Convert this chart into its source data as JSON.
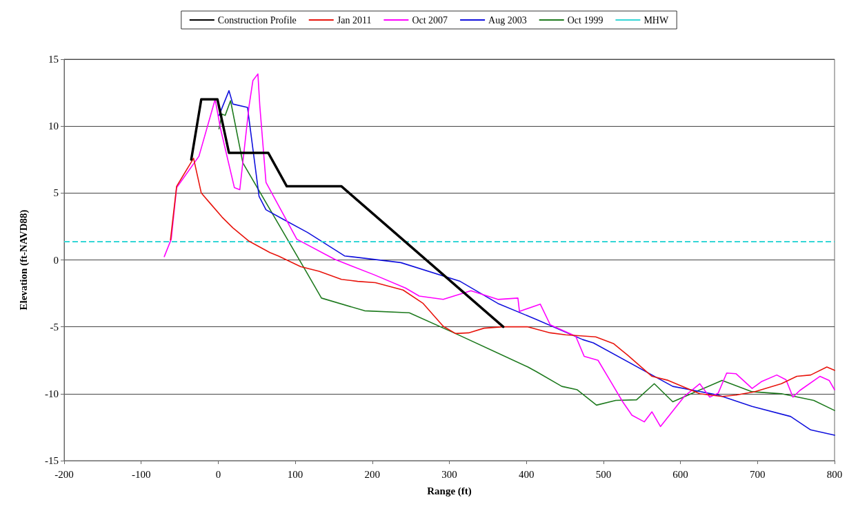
{
  "chart_data": {
    "type": "line",
    "xlabel": "Range (ft)",
    "ylabel": "Elevation (ft-NAVD88)",
    "xlim": [
      -200,
      800
    ],
    "xticks": [
      -200,
      -100,
      0,
      100,
      200,
      300,
      400,
      500,
      600,
      700,
      800
    ],
    "ylim": [
      -15,
      15
    ],
    "yticks": [
      -15,
      -10,
      -5,
      0,
      5,
      10,
      15
    ],
    "grid": "y",
    "legend": "top",
    "marker": "none",
    "line_style": "solid",
    "series": [
      {
        "name": "Construction Profile",
        "color": "#000000",
        "x": [
          -35,
          -22,
          -1,
          14,
          65,
          89,
          160,
          370
        ],
        "values": [
          7.5,
          12,
          12,
          8,
          8,
          5.5,
          5.5,
          -5
        ]
      },
      {
        "name": "Jan 2011",
        "color": "#e8140c",
        "x": [
          -62,
          -54,
          -32,
          -22,
          -10,
          5,
          19,
          40,
          67,
          78,
          107,
          131,
          160,
          181,
          204,
          240,
          266,
          292,
          308,
          325,
          345,
          369,
          402,
          431,
          451,
          490,
          513,
          531,
          563,
          584,
          625,
          654,
          672,
          696,
          731,
          751,
          769,
          790,
          800
        ],
        "values": [
          1.5,
          5.5,
          7.6,
          5,
          4.2,
          3.2,
          2.4,
          1.4,
          0.55,
          0.3,
          -0.5,
          -0.85,
          -1.45,
          -1.6,
          -1.7,
          -2.25,
          -3.25,
          -4.95,
          -5.5,
          -5.45,
          -5.1,
          -5,
          -5,
          -5.45,
          -5.6,
          -5.75,
          -6.25,
          -7.1,
          -8.7,
          -9,
          -10,
          -10.2,
          -10.1,
          -9.85,
          -9.25,
          -8.7,
          -8.6,
          -8,
          -8.25
        ]
      },
      {
        "name": "Oct 2007",
        "color": "#ff00ff",
        "x": [
          -70,
          -61,
          -54,
          -25,
          -4,
          3,
          21,
          28,
          40,
          45,
          51.5,
          54,
          62,
          102,
          151,
          202,
          243,
          261,
          292,
          328,
          363,
          389,
          391,
          418,
          431,
          464,
          475,
          493,
          508,
          525,
          537,
          553,
          563,
          574,
          605,
          625,
          638,
          649,
          660,
          672,
          693,
          705,
          725,
          737,
          746,
          755,
          781,
          793,
          800
        ],
        "values": [
          0.25,
          1.55,
          5.4,
          7.75,
          12,
          9.8,
          5.4,
          5.25,
          11.5,
          13.4,
          13.9,
          11.5,
          5.8,
          1.55,
          0.05,
          -1.1,
          -2.1,
          -2.7,
          -2.95,
          -2.3,
          -2.95,
          -2.85,
          -3.85,
          -3.3,
          -4.85,
          -5.7,
          -7.2,
          -7.5,
          -8.95,
          -10.6,
          -11.6,
          -12.1,
          -11.35,
          -12.45,
          -10.2,
          -9.25,
          -10.25,
          -9.95,
          -8.45,
          -8.5,
          -9.6,
          -9.1,
          -8.6,
          -8.95,
          -10.25,
          -9.75,
          -8.7,
          -9,
          -9.7
        ]
      },
      {
        "name": "Aug 2003",
        "color": "#1010dd",
        "x": [
          1,
          14,
          19,
          38,
          53,
          62,
          84,
          116,
          164,
          237,
          314,
          363,
          413,
          473,
          487,
          590,
          649,
          693,
          743,
          769,
          800
        ],
        "values": [
          10.8,
          12.65,
          11.65,
          11.4,
          4.75,
          3.75,
          3.05,
          2.05,
          0.3,
          -0.2,
          -1.6,
          -3.25,
          -4.45,
          -5.95,
          -6.2,
          -9.45,
          -10.1,
          -10.95,
          -11.7,
          -12.7,
          -13.1
        ]
      },
      {
        "name": "Oct 1999",
        "color": "#1e7a1e",
        "x": [
          1,
          5,
          9,
          16,
          32,
          113,
          134,
          190,
          248,
          308,
          402,
          413,
          446,
          466,
          491,
          516,
          543,
          566,
          590,
          654,
          693,
          731,
          773,
          800
        ],
        "values": [
          9.8,
          10.9,
          10.8,
          11.9,
          7.25,
          -0.75,
          -2.85,
          -3.8,
          -3.95,
          -5.5,
          -8,
          -8.35,
          -9.45,
          -9.7,
          -10.85,
          -10.5,
          -10.45,
          -9.25,
          -10.6,
          -9,
          -9.85,
          -10,
          -10.5,
          -11.25
        ]
      }
    ],
    "ref_lines": [
      {
        "axis": "y",
        "value": 1.4,
        "label": "MHW",
        "color": "#33d6d6",
        "line_style": "dashed"
      }
    ]
  }
}
